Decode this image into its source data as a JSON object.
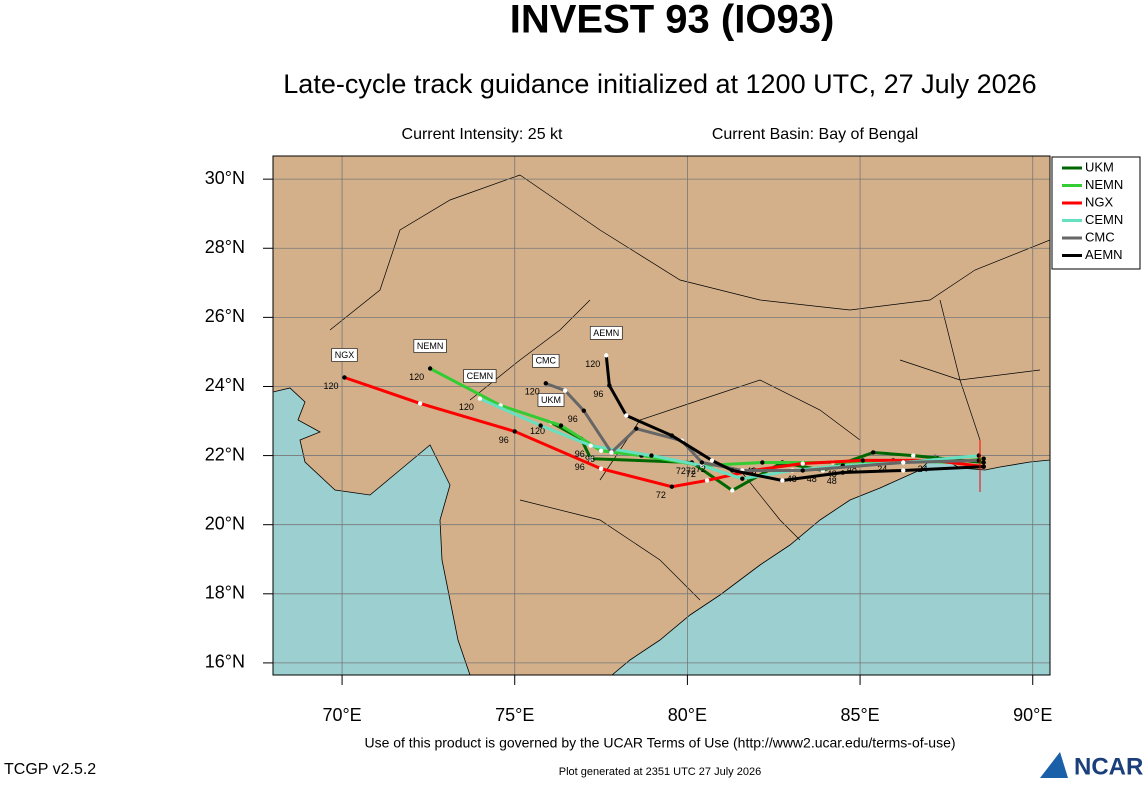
{
  "chart_data": {
    "type": "map",
    "title": "INVEST 93 (IO93)",
    "subtitle": "Late-cycle track guidance initialized at 1200 UTC, 27 July 2026",
    "intensity": "Current Intensity: 25 kt",
    "basin": "Current Basin: Bay of Bengal",
    "terms": "Use of this product is governed by the UCAR Terms of Use (http://www2.ucar.edu/terms-of-use)",
    "version": "TCGP v2.5.2",
    "generated": "Plot generated at 2351 UTC   27 July 2026",
    "logo": "NCAR",
    "xlim": [
      68,
      90.5
    ],
    "ylim": [
      15.65,
      30.67
    ],
    "xticks": [
      {
        "value": 70,
        "label": "70°E"
      },
      {
        "value": 75,
        "label": "75°E"
      },
      {
        "value": 80,
        "label": "80°E"
      },
      {
        "value": 85,
        "label": "85°E"
      },
      {
        "value": 90,
        "label": "90°E"
      }
    ],
    "yticks": [
      {
        "value": 16,
        "label": "16°N"
      },
      {
        "value": 18,
        "label": "18°N"
      },
      {
        "value": 20,
        "label": "20°N"
      },
      {
        "value": 22,
        "label": "22°N"
      },
      {
        "value": 24,
        "label": "24°N"
      },
      {
        "value": 26,
        "label": "26°N"
      },
      {
        "value": 28,
        "label": "28°N"
      },
      {
        "value": 30,
        "label": "30°N"
      }
    ],
    "grid": true,
    "legend": "upper right",
    "series": [
      {
        "name": "UKM",
        "color": "#006600",
        "x": [
          88.58,
          86.54,
          85.38,
          83.92,
          82.75,
          81.3,
          80.13,
          77.2,
          76.92,
          76.05
        ],
        "y": [
          21.8,
          22.0,
          22.09,
          21.57,
          21.8,
          20.99,
          21.8,
          21.91,
          22.49,
          22.96
        ],
        "point_labels": [
          null,
          null,
          null,
          "48",
          null,
          null,
          "72",
          "96",
          null,
          "120"
        ]
      },
      {
        "name": "NEMN",
        "color": "#33cc33",
        "x": [
          88.58,
          87.71,
          85.96,
          84.21,
          82.17,
          80.42,
          78.67,
          77.5,
          76.34,
          74.59,
          72.55
        ],
        "y": [
          21.91,
          21.8,
          21.86,
          21.8,
          21.8,
          21.71,
          22.0,
          22.14,
          22.87,
          23.45,
          24.52
        ],
        "point_labels": [
          null,
          null,
          "24",
          null,
          "48",
          null,
          null,
          "96",
          null,
          null,
          "120"
        ]
      },
      {
        "name": "NGX",
        "color": "#ff0000",
        "x": [
          88.58,
          87.13,
          85.08,
          83.34,
          81.88,
          80.57,
          79.55,
          77.5,
          75.0,
          72.26,
          70.07
        ],
        "y": [
          21.68,
          21.86,
          21.86,
          21.77,
          21.57,
          21.28,
          21.1,
          21.62,
          22.7,
          23.51,
          24.26
        ],
        "point_labels": [
          null,
          "24",
          "48",
          null,
          null,
          null,
          "72",
          null,
          "96",
          null,
          "120"
        ]
      },
      {
        "name": "CEMN",
        "color": "#66e0c0",
        "x": [
          88.44,
          86.25,
          84.5,
          83.04,
          81.59,
          80.42,
          78.96,
          77.2,
          75.75,
          73.99
        ],
        "y": [
          22.0,
          21.8,
          21.71,
          21.57,
          21.33,
          21.71,
          22.0,
          22.29,
          22.87,
          23.65
        ],
        "point_labels": [
          null,
          null,
          "48",
          null,
          null,
          "72",
          null,
          "96",
          null,
          "120"
        ]
      },
      {
        "name": "CMC",
        "color": "#666666",
        "x": [
          88.44,
          86.25,
          83.34,
          81.59,
          80.42,
          79.84,
          78.52,
          77.8,
          77.0,
          76.46,
          75.9
        ],
        "y": [
          21.86,
          21.8,
          21.57,
          21.57,
          21.8,
          22.43,
          22.78,
          22.09,
          23.3,
          23.88,
          24.09
        ],
        "point_labels": [
          null,
          null,
          "48",
          null,
          "72",
          null,
          null,
          null,
          "96",
          null,
          "120"
        ]
      },
      {
        "name": "AEMN",
        "color": "#000000",
        "x": [
          88.58,
          86.25,
          84.5,
          82.75,
          81.3,
          80.71,
          79.55,
          78.23,
          77.74,
          77.65
        ],
        "y": [
          21.68,
          21.57,
          21.51,
          21.28,
          21.57,
          21.86,
          22.58,
          23.16,
          24.03,
          24.9
        ],
        "point_labels": [
          null,
          null,
          "48",
          null,
          null,
          "72",
          null,
          null,
          "96",
          "120"
        ]
      }
    ]
  }
}
